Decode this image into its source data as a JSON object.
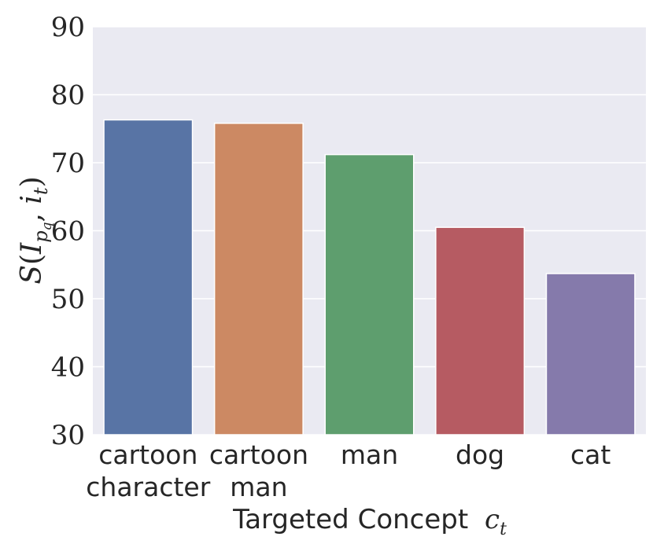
{
  "chart_data": {
    "type": "bar",
    "categories": [
      [
        "cartoon",
        "character"
      ],
      [
        "cartoon",
        "man"
      ],
      [
        "man"
      ],
      [
        "dog"
      ],
      [
        "cat"
      ]
    ],
    "values": [
      76.3,
      75.8,
      71.2,
      60.5,
      53.7
    ],
    "colors": [
      "#5874a5",
      "#cc8963",
      "#5e9e6e",
      "#b65b62",
      "#857aab"
    ],
    "ylim": [
      30,
      90
    ],
    "yticks": [
      30,
      40,
      50,
      60,
      70,
      80,
      90
    ],
    "xlabel": "Targeted Concept",
    "xlabel_math": "c",
    "xlabel_math_sub": "t",
    "ylabel": "S(I_{p_q}, i_t)",
    "plot_background": "#eaeaf2",
    "grid": true,
    "grid_color": "#ffffff"
  }
}
